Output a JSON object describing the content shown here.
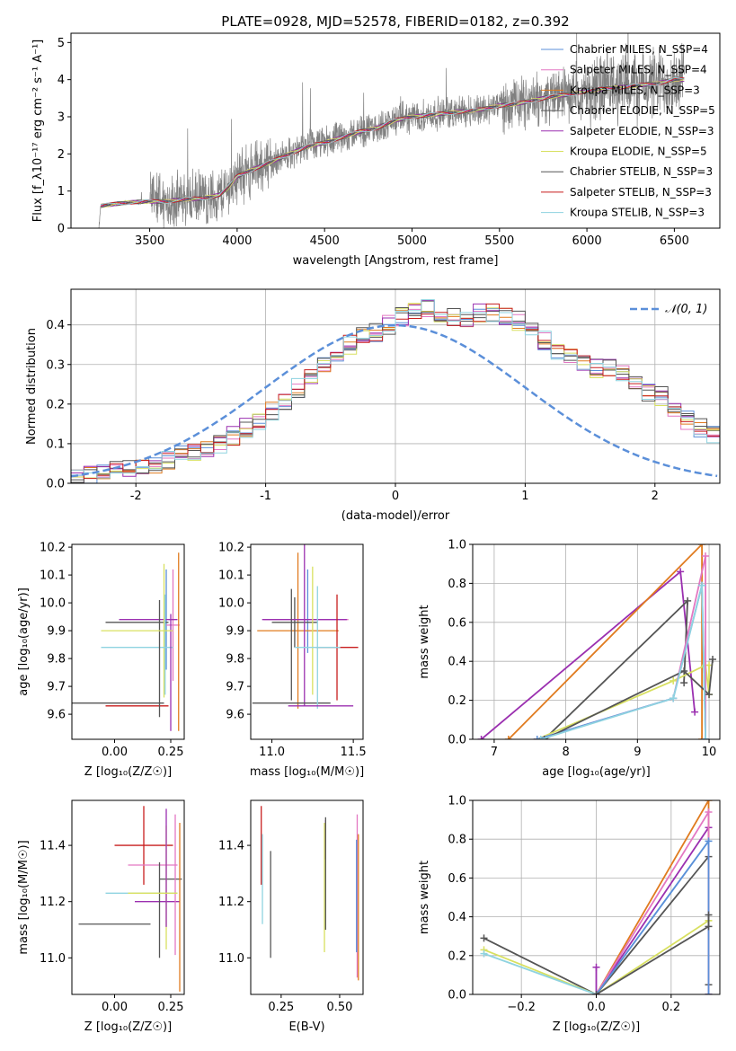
{
  "figure": {
    "title": "PLATE=0928, MJD=52578, FIBERID=0182, z=0.392"
  },
  "colors": {
    "chabrier_miles": "#5b8fd9",
    "salpeter_miles": "#e377c2",
    "kroupa_miles": "#e07b1f",
    "chabrier_elodie": "#555555",
    "salpeter_elodie": "#9b30b0",
    "kroupa_elodie": "#d8e060",
    "chabrier_stelib": "#555555",
    "salpeter_stelib": "#c81e1e",
    "kroupa_stelib": "#8fd3e0",
    "data": "#808080",
    "normal_curve": "#5b8fd9",
    "grid": "#b0b0b0"
  },
  "chart_data": [
    {
      "id": "spectrum",
      "type": "line",
      "title": "PLATE=0928, MJD=52578, FIBERID=0182, z=0.392",
      "xlabel": "wavelength [Angstrom, rest frame]",
      "ylabel": "Flux [f_λ10⁻¹⁷ erg cm⁻² s⁻¹ A⁻¹]",
      "xlim": [
        3050,
        6760
      ],
      "ylim": [
        0,
        5.25
      ],
      "xticks": [
        3500,
        4000,
        4500,
        5000,
        5500,
        6000,
        6500
      ],
      "yticks": [
        0,
        1,
        2,
        3,
        4,
        5
      ],
      "grid": false,
      "legend_position": "top-right",
      "continuum_points": {
        "x": [
          3210,
          3220,
          3300,
          3400,
          3500,
          3600,
          3700,
          3800,
          3900,
          3950,
          4000,
          4100,
          4200,
          4300,
          4400,
          4500,
          4600,
          4700,
          4800,
          4900,
          5000,
          5100,
          5200,
          5300,
          5400,
          5500,
          5600,
          5700,
          5800,
          5900,
          6000,
          6100,
          6200,
          6300,
          6400,
          6500,
          6560
        ],
        "y": [
          0,
          0.6,
          0.65,
          0.7,
          0.72,
          0.72,
          0.78,
          0.8,
          0.9,
          1.1,
          1.4,
          1.6,
          1.8,
          2.0,
          2.2,
          2.3,
          2.45,
          2.6,
          2.7,
          2.9,
          3.0,
          3.05,
          3.1,
          3.15,
          3.2,
          3.3,
          3.35,
          3.45,
          3.55,
          3.6,
          3.7,
          3.75,
          3.8,
          3.85,
          3.9,
          4.0,
          4.0
        ]
      },
      "series": [
        {
          "name": "Chabrier MILES, N_SSP=4",
          "color_key": "chabrier_miles"
        },
        {
          "name": "Salpeter MILES, N_SSP=4",
          "color_key": "salpeter_miles"
        },
        {
          "name": "Kroupa MILES, N_SSP=3",
          "color_key": "kroupa_miles"
        },
        {
          "name": "Chabrier ELODIE, N_SSP=5",
          "color_key": "chabrier_elodie"
        },
        {
          "name": "Salpeter ELODIE, N_SSP=3",
          "color_key": "salpeter_elodie"
        },
        {
          "name": "Kroupa ELODIE, N_SSP=5",
          "color_key": "kroupa_elodie"
        },
        {
          "name": "Chabrier STELIB, N_SSP=3",
          "color_key": "chabrier_stelib"
        },
        {
          "name": "Salpeter STELIB, N_SSP=3",
          "color_key": "salpeter_stelib"
        },
        {
          "name": "Kroupa STELIB, N_SSP=3",
          "color_key": "kroupa_stelib"
        }
      ]
    },
    {
      "id": "residual_hist",
      "type": "line",
      "xlabel": "(data-model)/error",
      "ylabel": "Normed distribution",
      "xlim": [
        -2.5,
        2.5
      ],
      "ylim": [
        0,
        0.49
      ],
      "xticks": [
        -2,
        -1,
        0,
        1,
        2
      ],
      "yticks": [
        0.0,
        0.1,
        0.2,
        0.3,
        0.4
      ],
      "grid": true,
      "legend_position": "top-right",
      "legend": "𝒩(0, 1)",
      "bin_width": 0.1,
      "bins_from": -2.5,
      "base_values": [
        0.02,
        0.025,
        0.03,
        0.035,
        0.04,
        0.04,
        0.05,
        0.06,
        0.07,
        0.08,
        0.09,
        0.1,
        0.12,
        0.14,
        0.16,
        0.18,
        0.21,
        0.24,
        0.27,
        0.3,
        0.33,
        0.35,
        0.37,
        0.38,
        0.4,
        0.42,
        0.43,
        0.44,
        0.43,
        0.42,
        0.42,
        0.43,
        0.43,
        0.42,
        0.41,
        0.39,
        0.36,
        0.33,
        0.32,
        0.3,
        0.29,
        0.29,
        0.28,
        0.25,
        0.23,
        0.22,
        0.19,
        0.16,
        0.14,
        0.12
      ],
      "base_values_right": [
        0.1,
        0.09,
        0.08,
        0.07,
        0.065,
        0.06,
        0.05,
        0.04,
        0.035,
        0.03
      ]
    },
    {
      "id": "age_vs_Z",
      "type": "scatter",
      "xlabel": "Z [log₁₀(Z/Z☉)]",
      "ylabel": "age  [log₁₀(age/yr)]",
      "xlim": [
        -0.19,
        0.31
      ],
      "ylim": [
        9.51,
        10.21
      ],
      "xticks": [
        0.0,
        0.25
      ],
      "xticklabels": [
        "0.00",
        "0.25"
      ],
      "yticks": [
        9.6,
        9.7,
        9.8,
        9.9,
        10.0,
        10.1,
        10.2
      ],
      "points": [
        {
          "color_key": "chabrier_miles",
          "x": 0.23,
          "xerr": 0.0,
          "y": 9.94,
          "yerr": 0.18
        },
        {
          "color_key": "salpeter_miles",
          "x": 0.26,
          "xerr": 0.03,
          "y": 9.92,
          "yerr": 0.2
        },
        {
          "color_key": "kroupa_miles",
          "x": 0.285,
          "xerr": 0.0,
          "y": 9.86,
          "yerr": 0.32
        },
        {
          "color_key": "chabrier_elodie",
          "x": 0.1,
          "xerr": 0.14,
          "y": 9.93,
          "yerr": 0.0
        },
        {
          "color_key": "salpeter_elodie",
          "x": 0.15,
          "xerr": 0.13,
          "y": 9.94,
          "yerr": 0.0
        },
        {
          "color_key": "kroupa_elodie",
          "x": 0.22,
          "xerr": 0.0,
          "y": 9.9,
          "yerr": 0.24
        },
        {
          "color_key": "chabrier_stelib",
          "x": 0.01,
          "xerr": 0.21,
          "y": 9.64,
          "yerr": 0.0
        },
        {
          "color_key": "salpeter_stelib",
          "x": 0.1,
          "xerr": 0.14,
          "y": 9.63,
          "yerr": 0.0
        },
        {
          "color_key": "kroupa_stelib",
          "x": 0.1,
          "xerr": 0.16,
          "y": 9.84,
          "yerr": 0.0
        },
        {
          "color_key": "chabrier_elodie",
          "x": 0.2,
          "xerr": 0.0,
          "y": 9.8,
          "yerr": 0.21
        },
        {
          "color_key": "salpeter_elodie",
          "x": 0.25,
          "xerr": 0.0,
          "y": 9.75,
          "yerr": 0.21
        },
        {
          "color_key": "kroupa_stelib",
          "x": 0.225,
          "xerr": 0.0,
          "y": 9.85,
          "yerr": 0.18
        },
        {
          "color_key": "kroupa_elodie",
          "x": 0.1,
          "xerr": 0.16,
          "y": 9.9,
          "yerr": 0.0
        }
      ]
    },
    {
      "id": "age_vs_mass",
      "type": "scatter",
      "xlabel": "mass [log₁₀(M/M☉)]",
      "ylabel": "",
      "xlim": [
        10.87,
        11.56
      ],
      "ylim": [
        9.51,
        10.21
      ],
      "xticks": [
        11.0,
        11.5
      ],
      "xticklabels": [
        "11.0",
        "11.5"
      ],
      "yticks": [
        9.6,
        9.7,
        9.8,
        9.9,
        10.0,
        10.1,
        10.2
      ],
      "points": [
        {
          "color_key": "chabrier_miles",
          "x": 11.22,
          "xerr": 0.0,
          "y": 9.97,
          "yerr": 0.15
        },
        {
          "color_key": "salpeter_miles",
          "x": 11.21,
          "xerr": 0.26,
          "y": 9.94,
          "yerr": 0.0
        },
        {
          "color_key": "kroupa_miles",
          "x": 11.16,
          "xerr": 0.25,
          "y": 9.9,
          "yerr": 0.28
        },
        {
          "color_key": "chabrier_elodie",
          "x": 11.14,
          "xerr": 0.14,
          "y": 9.93,
          "yerr": 0.09
        },
        {
          "color_key": "salpeter_elodie",
          "x": 11.2,
          "xerr": 0.26,
          "y": 9.94,
          "yerr": 0.31
        },
        {
          "color_key": "kroupa_elodie",
          "x": 11.25,
          "xerr": 0.0,
          "y": 9.9,
          "yerr": 0.23
        },
        {
          "color_key": "chabrier_stelib",
          "x": 11.12,
          "xerr": 0.24,
          "y": 9.64,
          "yerr": 0.0
        },
        {
          "color_key": "salpeter_stelib",
          "x": 11.4,
          "xerr": 0.13,
          "y": 9.84,
          "yerr": 0.19
        },
        {
          "color_key": "kroupa_stelib",
          "x": 11.28,
          "xerr": 0.14,
          "y": 9.84,
          "yerr": 0.22
        },
        {
          "color_key": "salpeter_elodie",
          "x": 11.3,
          "xerr": 0.2,
          "y": 9.63,
          "yerr": 0.0
        },
        {
          "color_key": "chabrier_elodie",
          "x": 11.12,
          "xerr": 0.0,
          "y": 9.85,
          "yerr": 0.2
        }
      ]
    },
    {
      "id": "mass_weight_vs_age",
      "type": "line",
      "xlabel": "age  [log₁₀(age/yr)]",
      "ylabel": "mass weight",
      "xlim": [
        6.7,
        10.15
      ],
      "ylim": [
        0,
        1.0
      ],
      "xticks": [
        7,
        8,
        9,
        10
      ],
      "yticks": [
        0.0,
        0.2,
        0.4,
        0.6,
        0.8,
        1.0
      ],
      "grid": true,
      "series": [
        {
          "color_key": "salpeter_elodie",
          "x": [
            6.82,
            9.6,
            9.8
          ],
          "y": [
            0.0,
            0.86,
            0.14
          ]
        },
        {
          "color_key": "kroupa_miles",
          "x": [
            7.2,
            9.9,
            9.9
          ],
          "y": [
            0.0,
            1.0,
            0.0
          ]
        },
        {
          "color_key": "chabrier_elodie",
          "x": [
            7.7,
            9.7,
            9.65
          ],
          "y": [
            0.0,
            0.71,
            0.29
          ]
        },
        {
          "color_key": "kroupa_elodie",
          "x": [
            7.6,
            9.5,
            9.95,
            10.0,
            10.0
          ],
          "y": [
            0.0,
            0.3,
            0.38,
            0.23,
            0.38
          ]
        },
        {
          "color_key": "salpeter_miles",
          "x": [
            7.6,
            9.5,
            9.95,
            9.95
          ],
          "y": [
            0.0,
            0.21,
            0.94,
            0.0
          ]
        },
        {
          "color_key": "chabrier_miles",
          "x": [
            7.6,
            9.5,
            9.9,
            9.95
          ],
          "y": [
            0.0,
            0.21,
            0.79,
            0.0
          ]
        },
        {
          "color_key": "chabrier_stelib",
          "x": [
            7.7,
            9.65,
            10.0,
            10.05
          ],
          "y": [
            0.0,
            0.35,
            0.23,
            0.41
          ]
        },
        {
          "color_key": "kroupa_stelib",
          "x": [
            7.65,
            9.5,
            9.9,
            9.95
          ],
          "y": [
            0.0,
            0.21,
            0.79,
            0.0
          ]
        }
      ]
    },
    {
      "id": "mass_vs_Z",
      "type": "scatter",
      "xlabel": "Z [log₁₀(Z/Z☉)]",
      "ylabel": "mass [log₁₀(M/M☉)]",
      "xlim": [
        -0.19,
        0.31
      ],
      "ylim": [
        10.87,
        11.56
      ],
      "xticks": [
        0.0,
        0.25
      ],
      "xticklabels": [
        "0.00",
        "0.25"
      ],
      "yticks": [
        11.0,
        11.2,
        11.4
      ],
      "points": [
        {
          "color_key": "salpeter_stelib",
          "x": 0.13,
          "xerr": 0.13,
          "y": 11.4,
          "yerr": 0.14
        },
        {
          "color_key": "salpeter_miles",
          "x": 0.17,
          "xerr": 0.11,
          "y": 11.33,
          "yerr": 0.0
        },
        {
          "color_key": "chabrier_stelib",
          "x": 0.25,
          "xerr": 0.05,
          "y": 11.28,
          "yerr": 0.0
        },
        {
          "color_key": "kroupa_stelib",
          "x": 0.12,
          "xerr": 0.16,
          "y": 11.23,
          "yerr": 0.0
        },
        {
          "color_key": "salpeter_elodie",
          "x": 0.19,
          "xerr": 0.1,
          "y": 11.2,
          "yerr": 0.0
        },
        {
          "color_key": "kroupa_miles",
          "x": 0.29,
          "xerr": 0.0,
          "y": 11.18,
          "yerr": 0.3
        },
        {
          "color_key": "chabrier_elodie",
          "x": 0.0,
          "xerr": 0.16,
          "y": 11.12,
          "yerr": 0.0
        },
        {
          "color_key": "kroupa_elodie",
          "x": 0.23,
          "xerr": 0.0,
          "y": 11.25,
          "yerr": 0.22
        },
        {
          "color_key": "chabrier_elodie",
          "x": 0.2,
          "xerr": 0.0,
          "y": 11.17,
          "yerr": 0.17
        },
        {
          "color_key": "salpeter_miles",
          "x": 0.27,
          "xerr": 0.0,
          "y": 11.26,
          "yerr": 0.25
        },
        {
          "color_key": "salpeter_elodie",
          "x": 0.23,
          "xerr": 0.0,
          "y": 11.32,
          "yerr": 0.21
        },
        {
          "color_key": "kroupa_elodie",
          "x": 0.17,
          "xerr": 0.11,
          "y": 11.23,
          "yerr": 0.0
        }
      ]
    },
    {
      "id": "mass_vs_ebv",
      "type": "scatter",
      "xlabel": "E(B-V)",
      "ylabel": "",
      "xlim": [
        0.12,
        0.6
      ],
      "ylim": [
        10.87,
        11.56
      ],
      "xticks": [
        0.25,
        0.5
      ],
      "xticklabels": [
        "0.25",
        "0.50"
      ],
      "yticks": [
        11.0,
        11.2,
        11.4
      ],
      "points": [
        {
          "color_key": "salpeter_stelib",
          "x": 0.165,
          "xerr": 0.0,
          "y": 11.4,
          "yerr": 0.14
        },
        {
          "color_key": "kroupa_stelib",
          "x": 0.17,
          "xerr": 0.0,
          "y": 11.28,
          "yerr": 0.16
        },
        {
          "color_key": "chabrier_stelib",
          "x": 0.205,
          "xerr": 0.0,
          "y": 11.19,
          "yerr": 0.19
        },
        {
          "color_key": "salpeter_elodie",
          "x": 0.44,
          "xerr": 0.0,
          "y": 11.42,
          "yerr": 0.07
        },
        {
          "color_key": "kroupa_elodie",
          "x": 0.435,
          "xerr": 0.0,
          "y": 11.25,
          "yerr": 0.23
        },
        {
          "color_key": "chabrier_elodie",
          "x": 0.44,
          "xerr": 0.0,
          "y": 11.3,
          "yerr": 0.2
        },
        {
          "color_key": "salpeter_miles",
          "x": 0.575,
          "xerr": 0.0,
          "y": 11.22,
          "yerr": 0.29
        },
        {
          "color_key": "kroupa_miles",
          "x": 0.58,
          "xerr": 0.0,
          "y": 11.18,
          "yerr": 0.26
        },
        {
          "color_key": "chabrier_miles",
          "x": 0.572,
          "xerr": 0.0,
          "y": 11.22,
          "yerr": 0.2
        }
      ]
    },
    {
      "id": "mass_weight_vs_Z",
      "type": "line",
      "xlabel": "Z [log₁₀(Z/Z☉)]",
      "ylabel": "mass weight",
      "xlim": [
        -0.33,
        0.33
      ],
      "ylim": [
        0,
        1.0
      ],
      "xticks": [
        -0.2,
        0.0,
        0.2
      ],
      "xticklabels": [
        "−0.2",
        "0.0",
        "0.2"
      ],
      "yticks": [
        0.0,
        0.2,
        0.4,
        0.6,
        0.8,
        1.0
      ],
      "grid": true,
      "series": [
        {
          "color_key": "chabrier_elodie",
          "x": [
            -0.3,
            0.0,
            0.3,
            0.3,
            0.3
          ],
          "y": [
            0.29,
            0.0,
            0.71,
            0.0,
            0.05
          ]
        },
        {
          "color_key": "kroupa_elodie",
          "x": [
            -0.3,
            0.0,
            0.3,
            0.3,
            0.3
          ],
          "y": [
            0.23,
            0.0,
            0.38,
            0.38,
            0.0
          ]
        },
        {
          "color_key": "kroupa_stelib",
          "x": [
            -0.3,
            0.0,
            0.3,
            0.3
          ],
          "y": [
            0.21,
            0.0,
            0.79,
            0.0
          ]
        },
        {
          "color_key": "salpeter_elodie",
          "x": [
            0.0,
            0.0,
            0.3,
            0.3
          ],
          "y": [
            0.14,
            0.0,
            0.86,
            0.0
          ]
        },
        {
          "color_key": "kroupa_miles",
          "x": [
            0.0,
            0.3,
            0.3
          ],
          "y": [
            0.0,
            1.0,
            0.0
          ]
        },
        {
          "color_key": "salpeter_miles",
          "x": [
            0.0,
            0.3,
            0.3
          ],
          "y": [
            0.0,
            0.94,
            0.0
          ]
        },
        {
          "color_key": "chabrier_miles",
          "x": [
            0.0,
            0.3,
            0.3
          ],
          "y": [
            0.0,
            0.79,
            0.0
          ]
        },
        {
          "color_key": "chabrier_stelib",
          "x": [
            0.0,
            0.3,
            0.3
          ],
          "y": [
            0.0,
            0.35,
            0.41
          ]
        }
      ]
    }
  ]
}
